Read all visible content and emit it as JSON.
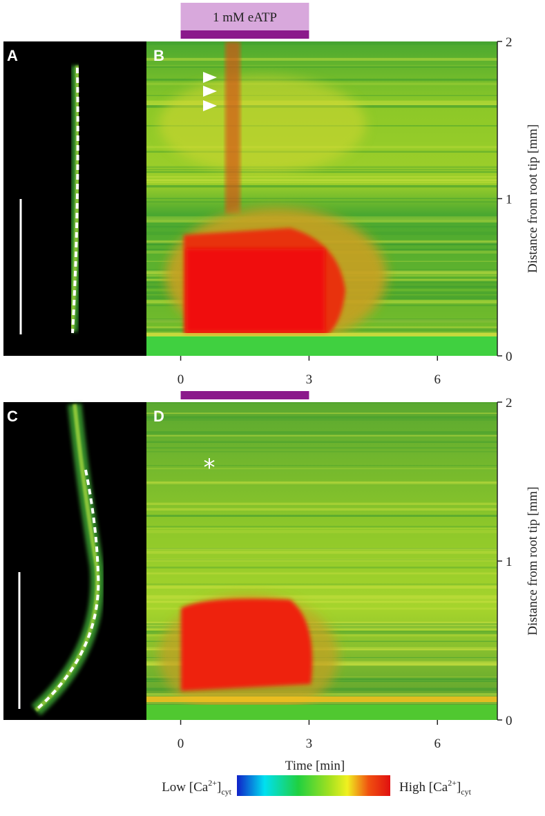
{
  "chart_data": [
    {
      "type": "heatmap",
      "image_panel": "A",
      "panel": "B",
      "xlim": [
        -0.8,
        7.4
      ],
      "xticks": [
        0,
        3,
        6
      ],
      "ylim": [
        0,
        2
      ],
      "yticks": [
        0,
        1,
        2
      ],
      "ylabel": "Distance from root tip [mm]",
      "treatment": [
        0,
        3
      ],
      "treatment_label": "1 mM eATP",
      "treatment_color": "#8b1a8b"
    },
    {
      "type": "heatmap",
      "image_panel": "C",
      "panel": "D",
      "xlim": [
        -0.8,
        7.4
      ],
      "xticks": [
        0,
        3,
        6
      ],
      "ylim": [
        0,
        2
      ],
      "yticks": [
        0,
        1,
        2
      ],
      "ylabel": "Distance from root tip [mm]",
      "xlabel": "Time [min]",
      "treatment": [
        0,
        3
      ],
      "treatment_color": "#8b1a8b",
      "annotation": "*"
    }
  ],
  "colorbar": {
    "low": {
      "text": "Low [Ca",
      "sup": "2+",
      "close": "]",
      "sub": "cyt"
    },
    "high": {
      "text": "High [Ca",
      "sup": "2+",
      "close": "]",
      "sub": "cyt"
    }
  }
}
